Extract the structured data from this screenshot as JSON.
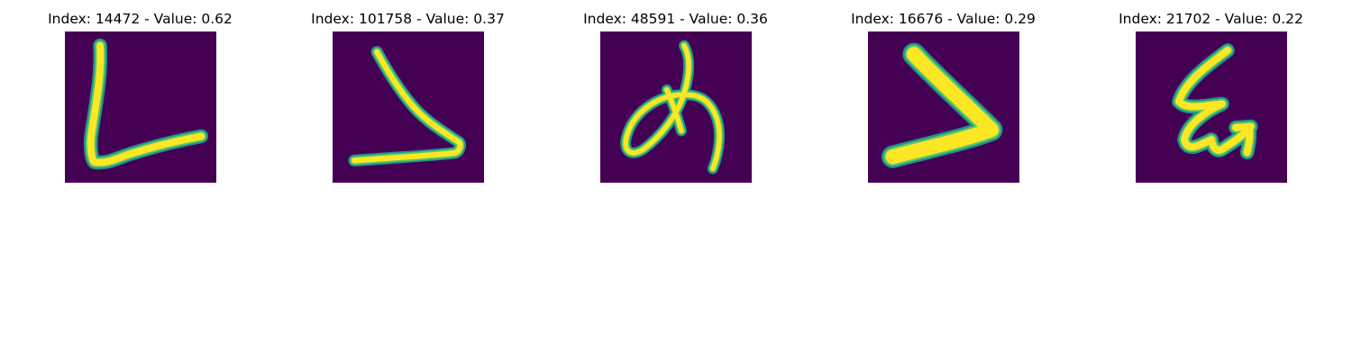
{
  "figure": {
    "panels": [
      {
        "title": "Index: 14472 - Value: 0.62",
        "glyph": "handwritten-L-glyph"
      },
      {
        "title": "Index: 101758 - Value: 0.37",
        "glyph": "handwritten-angle-glyph"
      },
      {
        "title": "Index: 48591 - Value: 0.36",
        "glyph": "handwritten-me-kana-glyph"
      },
      {
        "title": "Index: 16676 - Value: 0.29",
        "glyph": "handwritten-greater-than-glyph"
      },
      {
        "title": "Index: 21702 - Value: 0.22",
        "glyph": "handwritten-curly-glyph"
      }
    ],
    "colors": {
      "background": "#440154",
      "stroke_core": "#fde725",
      "stroke_edge": "#21918c",
      "stroke_mid": "#5ec962"
    }
  }
}
